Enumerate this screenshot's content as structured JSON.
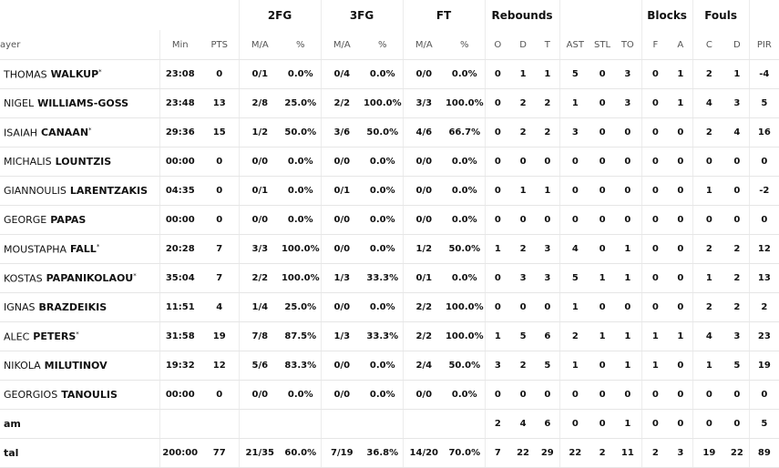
{
  "header": {
    "groups": [
      "2FG",
      "3FG",
      "FT",
      "Rebounds",
      "Blocks",
      "Fouls"
    ],
    "columns": [
      "ayer",
      "Min",
      "PTS",
      "M/A",
      "%",
      "M/A",
      "%",
      "M/A",
      "%",
      "O",
      "D",
      "T",
      "AST",
      "STL",
      "TO",
      "F",
      "A",
      "C",
      "D",
      "PIR"
    ]
  },
  "table": {
    "rows": [
      {
        "first": "THOMAS",
        "last": "WALKUP",
        "star": "*",
        "cells": [
          "23:08",
          0,
          "0/1",
          "0.0%",
          "0/4",
          "0.0%",
          "0/0",
          "0.0%",
          0,
          1,
          1,
          5,
          0,
          3,
          0,
          1,
          2,
          1,
          -4
        ]
      },
      {
        "first": "NIGEL",
        "last": "WILLIAMS-GOSS",
        "cells": [
          "23:48",
          13,
          "2/8",
          "25.0%",
          "2/2",
          "100.0%",
          "3/3",
          "100.0%",
          0,
          2,
          2,
          1,
          0,
          3,
          0,
          1,
          4,
          3,
          5
        ]
      },
      {
        "first": "ISAIAH",
        "last": "CANAAN",
        "star": "*",
        "cells": [
          "29:36",
          15,
          "1/2",
          "50.0%",
          "3/6",
          "50.0%",
          "4/6",
          "66.7%",
          0,
          2,
          2,
          3,
          0,
          0,
          0,
          0,
          2,
          4,
          16
        ]
      },
      {
        "first": "MICHALIS",
        "last": "LOUNTZIS",
        "cells": [
          "00:00",
          0,
          "0/0",
          "0.0%",
          "0/0",
          "0.0%",
          "0/0",
          "0.0%",
          0,
          0,
          0,
          0,
          0,
          0,
          0,
          0,
          0,
          0,
          0
        ]
      },
      {
        "first": "GIANNOULIS",
        "last": "LARENTZAKIS",
        "cells": [
          "04:35",
          0,
          "0/1",
          "0.0%",
          "0/1",
          "0.0%",
          "0/0",
          "0.0%",
          0,
          1,
          1,
          0,
          0,
          0,
          0,
          0,
          1,
          0,
          -2
        ]
      },
      {
        "first": "GEORGE",
        "last": "PAPAS",
        "cells": [
          "00:00",
          0,
          "0/0",
          "0.0%",
          "0/0",
          "0.0%",
          "0/0",
          "0.0%",
          0,
          0,
          0,
          0,
          0,
          0,
          0,
          0,
          0,
          0,
          0
        ]
      },
      {
        "first": "MOUSTAPHA",
        "last": "FALL",
        "star": "*",
        "cells": [
          "20:28",
          7,
          "3/3",
          "100.0%",
          "0/0",
          "0.0%",
          "1/2",
          "50.0%",
          1,
          2,
          3,
          4,
          0,
          1,
          0,
          0,
          2,
          2,
          12
        ]
      },
      {
        "first": "KOSTAS",
        "last": "PAPANIKOLAOU",
        "star": "*",
        "cells": [
          "35:04",
          7,
          "2/2",
          "100.0%",
          "1/3",
          "33.3%",
          "0/1",
          "0.0%",
          0,
          3,
          3,
          5,
          1,
          1,
          0,
          0,
          1,
          2,
          13
        ]
      },
      {
        "first": "IGNAS",
        "last": "BRAZDEIKIS",
        "cells": [
          "11:51",
          4,
          "1/4",
          "25.0%",
          "0/0",
          "0.0%",
          "2/2",
          "100.0%",
          0,
          0,
          0,
          1,
          0,
          0,
          0,
          0,
          2,
          2,
          2
        ]
      },
      {
        "first": "ALEC",
        "last": "PETERS",
        "star": "*",
        "cells": [
          "31:58",
          19,
          "7/8",
          "87.5%",
          "1/3",
          "33.3%",
          "2/2",
          "100.0%",
          1,
          5,
          6,
          2,
          1,
          1,
          1,
          1,
          4,
          3,
          23
        ]
      },
      {
        "first": "NIKOLA",
        "last": "MILUTINOV",
        "cells": [
          "19:32",
          12,
          "5/6",
          "83.3%",
          "0/0",
          "0.0%",
          "2/4",
          "50.0%",
          3,
          2,
          5,
          1,
          0,
          1,
          1,
          0,
          1,
          5,
          19
        ]
      },
      {
        "first": "GEORGIOS",
        "last": "TANOULIS",
        "cells": [
          "00:00",
          0,
          "0/0",
          "0.0%",
          "0/0",
          "0.0%",
          "0/0",
          "0.0%",
          0,
          0,
          0,
          0,
          0,
          0,
          0,
          0,
          0,
          0,
          0
        ]
      },
      {
        "label": "am",
        "cells": [
          null,
          null,
          null,
          null,
          null,
          null,
          null,
          null,
          2,
          4,
          6,
          0,
          0,
          1,
          0,
          0,
          0,
          0,
          5
        ]
      },
      {
        "label": "tal",
        "cells": [
          "200:00",
          77,
          "21/35",
          "60.0%",
          "7/19",
          "36.8%",
          "14/20",
          "70.0%",
          7,
          22,
          29,
          22,
          2,
          11,
          2,
          3,
          19,
          22,
          89
        ]
      }
    ]
  }
}
